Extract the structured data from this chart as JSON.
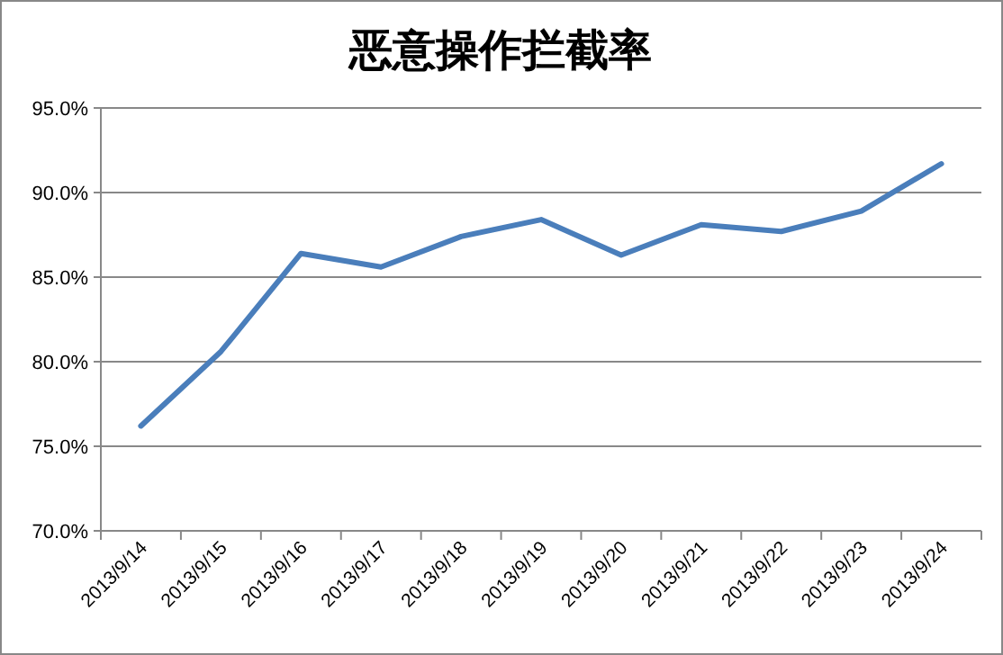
{
  "chart_data": {
    "type": "line",
    "title": "恶意操作拦截率",
    "categories": [
      "2013/9/14",
      "2013/9/15",
      "2013/9/16",
      "2013/9/17",
      "2013/9/18",
      "2013/9/19",
      "2013/9/20",
      "2013/9/21",
      "2013/9/22",
      "2013/9/23",
      "2013/9/24"
    ],
    "series": [
      {
        "color": "#4a7ebb",
        "values": [
          76.2,
          80.6,
          86.4,
          85.6,
          87.4,
          88.4,
          86.3,
          88.1,
          87.7,
          88.9,
          91.7
        ]
      }
    ],
    "ylim": [
      70,
      95
    ],
    "yticks": [
      {
        "value": 70,
        "label": "70.0%"
      },
      {
        "value": 75,
        "label": "75.0%"
      },
      {
        "value": 80,
        "label": "80.0%"
      },
      {
        "value": 85,
        "label": "85.0%"
      },
      {
        "value": 90,
        "label": "90.0%"
      },
      {
        "value": 95,
        "label": "95.0%"
      }
    ],
    "grid": "y",
    "marker": "none",
    "line_style": "solid"
  }
}
